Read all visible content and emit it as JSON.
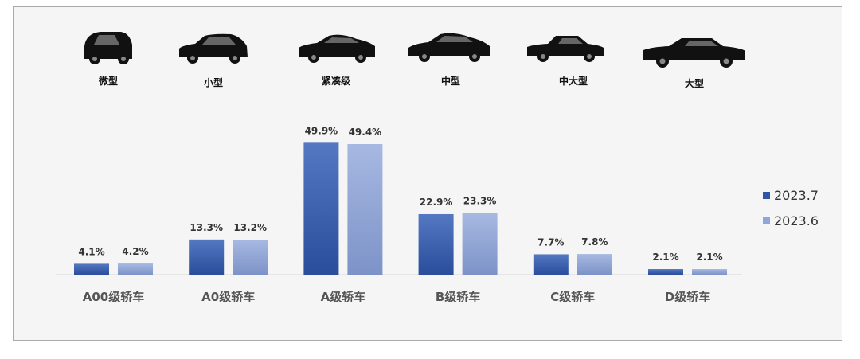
{
  "car_sizes": [
    "微型",
    "小型",
    "紧凑级",
    "中型",
    "中大型",
    "大型"
  ],
  "chart_data": {
    "type": "bar",
    "categories": [
      "A00级轿车",
      "A0级轿车",
      "A级轿车",
      "B级轿车",
      "C级轿车",
      "D级轿车"
    ],
    "series": [
      {
        "name": "2023.7",
        "values": [
          4.1,
          13.3,
          49.9,
          22.9,
          7.7,
          2.1
        ],
        "labels": [
          "4.1%",
          "13.3%",
          "49.9%",
          "22.9%",
          "7.7%",
          "2.1%"
        ],
        "color": "#2f55a4"
      },
      {
        "name": "2023.6",
        "values": [
          4.2,
          13.2,
          49.4,
          23.3,
          7.8,
          2.1
        ],
        "labels": [
          "4.2%",
          "13.2%",
          "49.4%",
          "23.3%",
          "7.8%",
          "2.1%"
        ],
        "color": "#8fa6d8"
      }
    ],
    "unit": "%",
    "ylim": [
      0,
      55
    ],
    "grid": false,
    "legend_position": "right"
  },
  "colors": {
    "background": "#f5f5f5",
    "border": "#a9a9a9",
    "car": "#111111"
  },
  "icons": [
    "micro-car-icon",
    "hatchback-car-icon",
    "compact-sedan-icon",
    "midsize-sedan-icon",
    "large-sedan-icon",
    "full-size-sedan-icon"
  ]
}
